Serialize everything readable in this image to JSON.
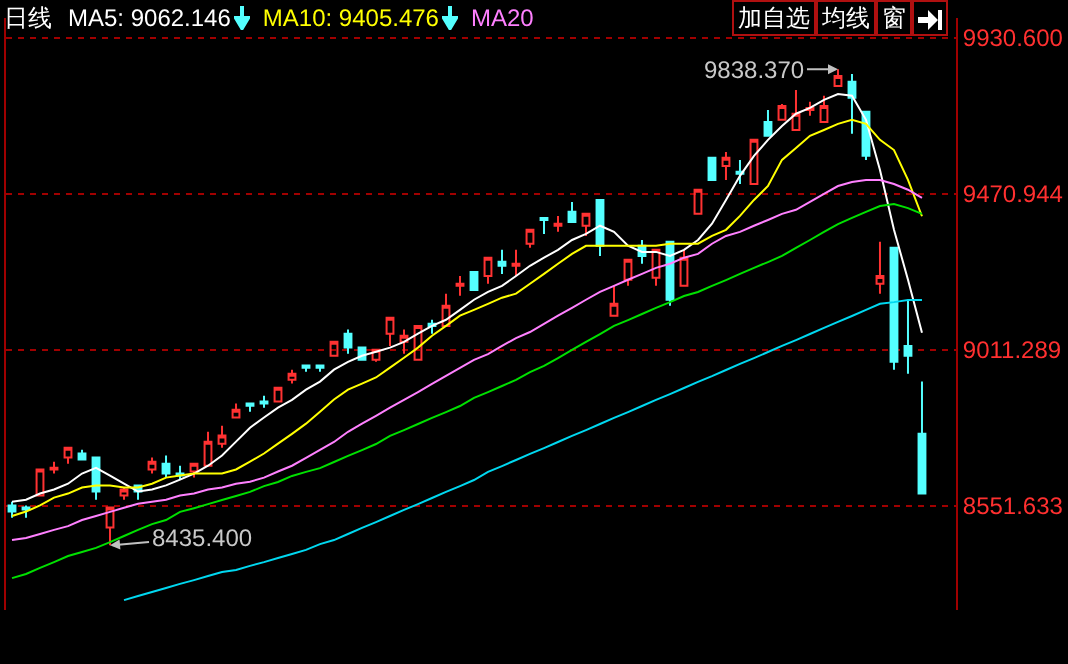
{
  "chart_data": {
    "type": "candlestick",
    "title": "日线",
    "categories": [
      null,
      null,
      null,
      null,
      null,
      null,
      null,
      null,
      null,
      null,
      null,
      null,
      null,
      null,
      null,
      null,
      null,
      null,
      null,
      null,
      null,
      null,
      null,
      null,
      null,
      null,
      null,
      null,
      null,
      null,
      null,
      null,
      null,
      null,
      null,
      null,
      null,
      null,
      null,
      null,
      null,
      null,
      null,
      null,
      null,
      null,
      null,
      null,
      null,
      null,
      null,
      null,
      null,
      null,
      null,
      null,
      null,
      null,
      null,
      null,
      null,
      null,
      null,
      null,
      null,
      null
    ],
    "ohlc": [
      [
        8553,
        8564,
        8517,
        8535
      ],
      [
        8547,
        8553,
        8517,
        8541
      ],
      [
        8582,
        8659,
        8582,
        8659
      ],
      [
        8659,
        8682,
        8647,
        8664
      ],
      [
        8694,
        8723,
        8676,
        8723
      ],
      [
        8706,
        8717,
        8688,
        8688
      ],
      [
        8694,
        8694,
        8570,
        8594
      ],
      [
        8488,
        8547,
        8435.4,
        8547
      ],
      [
        8582,
        8606,
        8570,
        8600
      ],
      [
        8612,
        8612,
        8570,
        8594
      ],
      [
        8659,
        8694,
        8647,
        8682
      ],
      [
        8676,
        8700,
        8635,
        8647
      ],
      [
        8647,
        8670,
        8629,
        8641
      ],
      [
        8653,
        8676,
        8635,
        8676
      ],
      [
        8670,
        8770,
        8670,
        8741
      ],
      [
        8735,
        8788,
        8723,
        8759
      ],
      [
        8812,
        8853,
        8812,
        8835
      ],
      [
        8853,
        8853,
        8829,
        8847
      ],
      [
        8859,
        8876,
        8841,
        8853
      ],
      [
        8859,
        8900,
        8859,
        8900
      ],
      [
        8923,
        8953,
        8912,
        8941
      ],
      [
        8965,
        8965,
        8947,
        8959
      ],
      [
        8965,
        8965,
        8947,
        8959
      ],
      [
        8994,
        9035,
        8994,
        9035
      ],
      [
        9059,
        9071,
        9000,
        9018
      ],
      [
        9018,
        9018,
        8982,
        8982
      ],
      [
        8982,
        9012,
        8976,
        9012
      ],
      [
        9059,
        9106,
        9023,
        9106
      ],
      [
        9035,
        9071,
        9000,
        9053
      ],
      [
        8982,
        9082,
        8982,
        9082
      ],
      [
        9088,
        9100,
        9059,
        9082
      ],
      [
        9082,
        9177,
        9082,
        9141
      ],
      [
        9200,
        9229,
        9171,
        9206
      ],
      [
        9241,
        9241,
        9188,
        9188
      ],
      [
        9229,
        9283,
        9206,
        9283
      ],
      [
        9271,
        9306,
        9235,
        9259
      ],
      [
        9259,
        9306,
        9229,
        9265
      ],
      [
        9324,
        9365,
        9312,
        9365
      ],
      [
        9400,
        9400,
        9353,
        9394
      ],
      [
        9377,
        9406,
        9359,
        9383
      ],
      [
        9418,
        9447,
        9388,
        9388
      ],
      [
        9377,
        9412,
        9347,
        9412
      ],
      [
        9453,
        9453,
        9288,
        9318
      ],
      [
        9112,
        9200,
        9112,
        9147
      ],
      [
        9218,
        9277,
        9200,
        9277
      ],
      [
        9318,
        9335,
        9265,
        9288
      ],
      [
        9224,
        9306,
        9200,
        9306
      ],
      [
        9330,
        9330,
        9141,
        9159
      ],
      [
        9200,
        9306,
        9200,
        9283
      ],
      [
        9412,
        9483,
        9412,
        9483
      ],
      [
        9577,
        9577,
        9512,
        9512
      ],
      [
        9553,
        9594,
        9512,
        9577
      ],
      [
        9536,
        9571,
        9500,
        9530
      ],
      [
        9500,
        9630,
        9500,
        9630
      ],
      [
        9683,
        9718,
        9642,
        9642
      ],
      [
        9689,
        9736,
        9689,
        9730
      ],
      [
        9659,
        9777,
        9659,
        9707
      ],
      [
        9718,
        9742,
        9701,
        9724
      ],
      [
        9683,
        9760,
        9683,
        9730
      ],
      [
        9789,
        9838.37,
        9789,
        9818
      ],
      [
        9801,
        9824,
        9648,
        9754
      ],
      [
        9713,
        9713,
        9571,
        9583
      ],
      [
        9206,
        9330,
        9177,
        9229
      ],
      [
        9312,
        9312,
        8953,
        8976
      ],
      [
        9023,
        9159,
        8941,
        8994
      ],
      [
        8764,
        8918,
        8588,
        8588
      ]
    ],
    "series": [
      {
        "type": "line",
        "color": "#ffffff",
        "values": [
          8564,
          8570,
          8588,
          8600,
          8617,
          8647,
          8664,
          8641,
          8617,
          8594,
          8600,
          8612,
          8629,
          8647,
          8670,
          8700,
          8741,
          8782,
          8812,
          8841,
          8864,
          8894,
          8918,
          8953,
          8976,
          8994,
          9006,
          9018,
          9035,
          9059,
          9082,
          9100,
          9129,
          9159,
          9182,
          9200,
          9229,
          9259,
          9283,
          9306,
          9335,
          9353,
          9377,
          9359,
          9318,
          9300,
          9300,
          9288,
          9306,
          9335,
          9383,
          9453,
          9524,
          9583,
          9630,
          9671,
          9707,
          9724,
          9748,
          9765,
          9760,
          9689,
          9541,
          9365,
          9218,
          9062
        ]
      },
      {
        "type": "line",
        "color": "#ffff00",
        "values": [
          8522,
          8535,
          8553,
          8576,
          8588,
          8606,
          8612,
          8612,
          8606,
          8606,
          8617,
          8635,
          8641,
          8647,
          8647,
          8647,
          8659,
          8682,
          8706,
          8735,
          8764,
          8794,
          8829,
          8865,
          8894,
          8912,
          8930,
          8959,
          8988,
          9018,
          9053,
          9082,
          9112,
          9129,
          9147,
          9165,
          9177,
          9206,
          9235,
          9265,
          9294,
          9318,
          9318,
          9318,
          9318,
          9318,
          9318,
          9324,
          9324,
          9324,
          9347,
          9365,
          9406,
          9453,
          9494,
          9571,
          9606,
          9642,
          9659,
          9677,
          9689,
          9677,
          9630,
          9600,
          9512,
          9405
        ]
      },
      {
        "type": "line",
        "color": "#ff80ff",
        "values": [
          8451,
          8457,
          8469,
          8481,
          8492,
          8510,
          8522,
          8534,
          8546,
          8558,
          8564,
          8570,
          8582,
          8588,
          8600,
          8606,
          8617,
          8623,
          8635,
          8653,
          8670,
          8693,
          8717,
          8740,
          8770,
          8794,
          8817,
          8841,
          8864,
          8887,
          8911,
          8935,
          8958,
          8982,
          8999,
          9023,
          9046,
          9064,
          9088,
          9112,
          9135,
          9159,
          9182,
          9200,
          9218,
          9235,
          9253,
          9265,
          9283,
          9294,
          9324,
          9347,
          9359,
          9377,
          9394,
          9412,
          9424,
          9447,
          9471,
          9494,
          9506,
          9512,
          9512,
          9500,
          9483,
          9459
        ]
      },
      {
        "type": "line",
        "color": "#00e000",
        "values": [
          8339,
          8351,
          8369,
          8386,
          8404,
          8416,
          8428,
          8445,
          8463,
          8481,
          8498,
          8510,
          8534,
          8545,
          8557,
          8569,
          8581,
          8593,
          8610,
          8622,
          8640,
          8652,
          8663,
          8681,
          8699,
          8716,
          8734,
          8758,
          8775,
          8793,
          8811,
          8828,
          8846,
          8870,
          8887,
          8905,
          8923,
          8946,
          8964,
          8987,
          9011,
          9035,
          9058,
          9082,
          9099,
          9117,
          9135,
          9152,
          9170,
          9182,
          9200,
          9217,
          9235,
          9253,
          9270,
          9288,
          9312,
          9335,
          9359,
          9382,
          9400,
          9418,
          9435,
          9441,
          9429,
          9412
        ]
      },
      {
        "type": "line",
        "color": "#00d8f0",
        "values": [
          null,
          null,
          null,
          null,
          null,
          null,
          null,
          null,
          8274,
          8286,
          8298,
          8310,
          8322,
          8333,
          8345,
          8357,
          8363,
          8375,
          8386,
          8398,
          8410,
          8422,
          8439,
          8451,
          8469,
          8487,
          8504,
          8522,
          8540,
          8557,
          8575,
          8593,
          8610,
          8628,
          8652,
          8669,
          8687,
          8705,
          8722,
          8740,
          8758,
          8775,
          8793,
          8811,
          8828,
          8846,
          8864,
          8881,
          8899,
          8917,
          8934,
          8952,
          8970,
          8987,
          9005,
          9023,
          9040,
          9058,
          9076,
          9094,
          9111,
          9129,
          9147,
          9152,
          9158,
          9158
        ]
      }
    ],
    "ylim": [
      8245,
      9989
    ],
    "yticks": [
      {
        "value": 9930.6,
        "label": "9930.600"
      },
      {
        "value": 9470.944,
        "label": "9470.944"
      },
      {
        "value": 9011.289,
        "label": "9011.289"
      },
      {
        "value": 8551.633,
        "label": "8551.633"
      }
    ],
    "grid": "y",
    "tick_labels": "y",
    "annotations": [
      "MA5: 9062.146",
      "MA10: 9405.476",
      "MA20",
      "加自选",
      "均线",
      "窗",
      "8435.400",
      "9838.370"
    ]
  }
}
